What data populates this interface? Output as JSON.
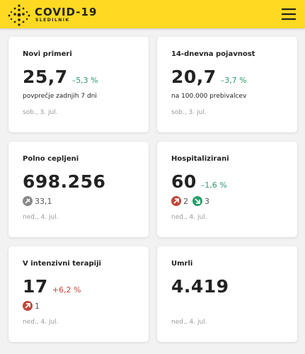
{
  "header": {
    "title": "COVID-19",
    "subtitle": "SLEDILNIK"
  },
  "cards": [
    {
      "title": "Novi primeri",
      "value": "25,7",
      "change": "–5,3 %",
      "change_color": "#2a9d6a",
      "note": "povprečje zadnjih 7 dni",
      "date": "sob., 3. jul."
    },
    {
      "title": "14-dnevna pojavnost",
      "value": "20,7",
      "change": "–3,7 %",
      "change_color": "#2a9d6a",
      "note": "na 100.000 prebivalcev",
      "date": "sob., 3. jul."
    },
    {
      "title": "Polno cepljeni",
      "value": "698.256",
      "badges": [
        {
          "icon": "vaccine",
          "text": "33,1"
        }
      ],
      "date": "ned., 4. jul."
    },
    {
      "title": "Hospitalizirani",
      "value": "60",
      "change": "–1,6 %",
      "change_color": "#2a9d6a",
      "badges": [
        {
          "icon": "up",
          "text": "2"
        },
        {
          "icon": "down",
          "text": "3"
        }
      ],
      "date": "ned., 4. jul."
    },
    {
      "title": "V intenzivni terapiji",
      "value": "17",
      "change": "+6,2 %",
      "change_color": "#c0463a",
      "badges": [
        {
          "icon": "up",
          "text": "1"
        }
      ],
      "date": "ned., 4. jul."
    },
    {
      "title": "Umrli",
      "value": "4.419",
      "date": "ned., 4. jul."
    }
  ]
}
